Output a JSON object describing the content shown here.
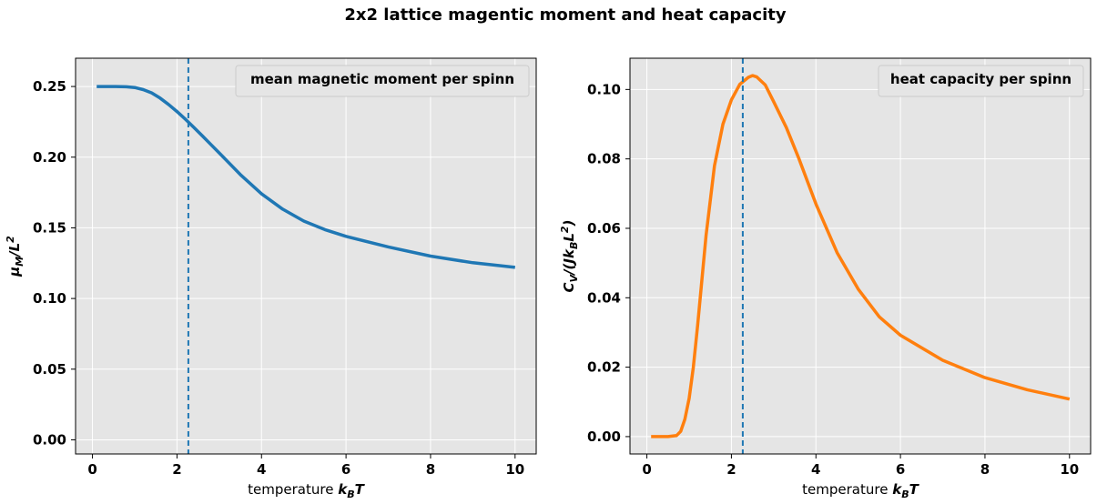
{
  "figure": {
    "suptitle": "2x2 lattice magentic moment and heat capacity"
  },
  "chart_data": [
    {
      "type": "line",
      "title": "",
      "xlabel": "temperature k_B T",
      "xlabel_prefix": "temperature ",
      "xlabel_math": "k",
      "xlabel_math_sub": "B",
      "xlabel_math_suffix": "T",
      "ylabel": "μ_M/L²",
      "ylabel_math": "μ",
      "ylabel_math_sub": "M",
      "ylabel_math_mid": "/L",
      "ylabel_math_sup": "2",
      "xlim": [
        -0.4,
        10.5
      ],
      "ylim": [
        -0.01,
        0.27
      ],
      "xticks": [
        0,
        2,
        4,
        6,
        8,
        10
      ],
      "xtick_labels": [
        "0",
        "2",
        "4",
        "6",
        "8",
        "10"
      ],
      "yticks": [
        0.0,
        0.05,
        0.1,
        0.15,
        0.2,
        0.25
      ],
      "ytick_labels": [
        "0.00",
        "0.05",
        "0.10",
        "0.15",
        "0.20",
        "0.25"
      ],
      "grid": true,
      "legend_position": "upper-right",
      "vline": {
        "x": 2.269,
        "style": "dashed",
        "color": "#1f77b4"
      },
      "series": [
        {
          "name": "mean magnetic moment per spinn",
          "color": "#1f77b4",
          "x": [
            0.1,
            0.5,
            0.8,
            1.0,
            1.2,
            1.4,
            1.6,
            1.8,
            2.0,
            2.2,
            2.4,
            2.6,
            2.8,
            3.0,
            3.5,
            4.0,
            4.5,
            5.0,
            5.5,
            6.0,
            7.0,
            8.0,
            9.0,
            10.0
          ],
          "y": [
            0.25,
            0.25,
            0.2498,
            0.2493,
            0.2478,
            0.2455,
            0.2418,
            0.2373,
            0.2323,
            0.2268,
            0.221,
            0.215,
            0.209,
            0.203,
            0.1877,
            0.174,
            0.1632,
            0.1548,
            0.1487,
            0.144,
            0.1365,
            0.13,
            0.1253,
            0.122
          ]
        }
      ]
    },
    {
      "type": "line",
      "title": "",
      "xlabel": "temperature k_B T",
      "xlabel_prefix": "temperature ",
      "xlabel_math": "k",
      "xlabel_math_sub": "B",
      "xlabel_math_suffix": "T",
      "ylabel": "C_V/(Jk_B L²)",
      "ylabel_math": "C",
      "ylabel_math_sub": "V",
      "ylabel_math_mid": "/(Jk",
      "ylabel_math_sub2": "B",
      "ylabel_math_mid2": "L",
      "ylabel_math_sup": "2",
      "ylabel_math_end": ")",
      "xlim": [
        -0.4,
        10.5
      ],
      "ylim": [
        -0.005,
        0.109
      ],
      "xticks": [
        0,
        2,
        4,
        6,
        8,
        10
      ],
      "xtick_labels": [
        "0",
        "2",
        "4",
        "6",
        "8",
        "10"
      ],
      "yticks": [
        0.0,
        0.02,
        0.04,
        0.06,
        0.08,
        0.1
      ],
      "ytick_labels": [
        "0.00",
        "0.02",
        "0.04",
        "0.06",
        "0.08",
        "0.10"
      ],
      "grid": true,
      "legend_position": "upper-right",
      "vline": {
        "x": 2.269,
        "style": "dashed",
        "color": "#1f77b4"
      },
      "series": [
        {
          "name": "heat capacity per spinn",
          "color": "#ff7f0e",
          "x": [
            0.1,
            0.5,
            0.7,
            0.8,
            0.9,
            1.0,
            1.1,
            1.2,
            1.4,
            1.6,
            1.8,
            2.0,
            2.2,
            2.4,
            2.5,
            2.6,
            2.8,
            3.0,
            3.3,
            3.6,
            4.0,
            4.5,
            5.0,
            5.5,
            6.0,
            7.0,
            8.0,
            9.0,
            10.0
          ],
          "y": [
            0.0,
            0.0,
            0.0003,
            0.0015,
            0.005,
            0.011,
            0.02,
            0.032,
            0.058,
            0.078,
            0.09,
            0.097,
            0.1015,
            0.1035,
            0.104,
            0.1036,
            0.1013,
            0.0965,
            0.089,
            0.08,
            0.067,
            0.053,
            0.0425,
            0.0345,
            0.0292,
            0.022,
            0.017,
            0.0135,
            0.0108
          ]
        }
      ]
    }
  ]
}
